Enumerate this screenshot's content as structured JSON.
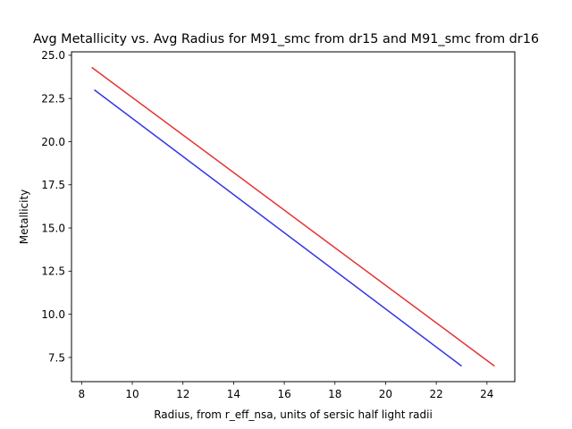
{
  "chart_data": {
    "type": "line",
    "title": "Avg Metallicity vs. Avg Radius for M91_smc from dr15 and M91_smc from dr16",
    "xlabel": "Radius, from r_eff_nsa, units of sersic half light radii",
    "ylabel": "Metallicity",
    "xlim": [
      7.6,
      25.1
    ],
    "ylim": [
      6.1,
      25.2
    ],
    "xticks": [
      8,
      10,
      12,
      14,
      16,
      18,
      20,
      22,
      24
    ],
    "yticks": [
      7.5,
      10.0,
      12.5,
      15.0,
      17.5,
      20.0,
      22.5,
      25.0
    ],
    "ytick_labels": [
      "7.5",
      "10.0",
      "12.5",
      "15.0",
      "17.5",
      "20.0",
      "22.5",
      "25.0"
    ],
    "grid": false,
    "series": [
      {
        "color": "#3333e6",
        "x": [
          8.5,
          23.0
        ],
        "y": [
          23.0,
          7.0
        ]
      },
      {
        "color": "#e63333",
        "x": [
          8.4,
          24.3
        ],
        "y": [
          24.3,
          7.0
        ]
      }
    ]
  }
}
